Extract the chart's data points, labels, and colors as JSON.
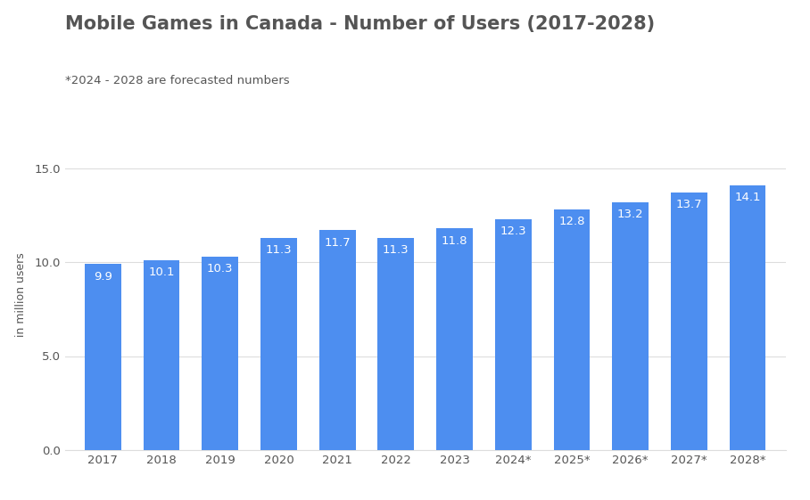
{
  "title": "Mobile Games in Canada - Number of Users (2017-2028)",
  "subtitle": "*2024 - 2028 are forecasted numbers",
  "ylabel": "in million users",
  "categories": [
    "2017",
    "2018",
    "2019",
    "2020",
    "2021",
    "2022",
    "2023",
    "2024*",
    "2025*",
    "2026*",
    "2027*",
    "2028*"
  ],
  "values": [
    9.9,
    10.1,
    10.3,
    11.3,
    11.7,
    11.3,
    11.8,
    12.3,
    12.8,
    13.2,
    13.7,
    14.1
  ],
  "bar_color": "#4d8ef0",
  "ylim": [
    0,
    16.5
  ],
  "yticks": [
    0.0,
    5.0,
    10.0,
    15.0
  ],
  "background_color": "#ffffff",
  "title_fontsize": 15,
  "subtitle_fontsize": 9.5,
  "ylabel_fontsize": 9,
  "tick_fontsize": 9.5,
  "value_label_fontsize": 9.5,
  "grid_color": "#dddddd",
  "text_color": "#555555",
  "label_color": "#ffffff"
}
